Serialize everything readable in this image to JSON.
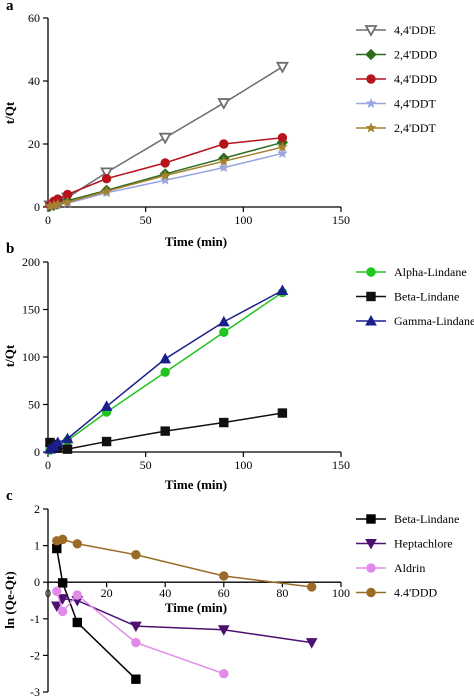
{
  "chart_data": [
    {
      "panel_label": "a",
      "type": "line",
      "xlabel": "Time (min)",
      "ylabel": "t/Qt",
      "xlim": [
        0,
        150
      ],
      "ylim": [
        0,
        60
      ],
      "xticks": [
        0,
        50,
        100,
        150
      ],
      "yticks": [
        0,
        20,
        40,
        60
      ],
      "legend_position": "right",
      "series": [
        {
          "name": "4,4'DDE",
          "color": "#6e6e6e",
          "marker": "triangle-down-open",
          "x": [
            1,
            3,
            5,
            10,
            30,
            60,
            90,
            120
          ],
          "y": [
            0.5,
            0.8,
            1.5,
            3,
            11,
            22,
            33,
            44.5
          ]
        },
        {
          "name": "2,4'DDD",
          "color": "#2f6b1f",
          "marker": "diamond",
          "x": [
            1,
            3,
            5,
            10,
            30,
            60,
            90,
            120
          ],
          "y": [
            0.3,
            0.6,
            1,
            2,
            5.3,
            10.5,
            15.5,
            20.5
          ]
        },
        {
          "name": "4,4'DDD",
          "color": "#b5141c",
          "marker": "circle",
          "x": [
            1,
            3,
            5,
            10,
            30,
            60,
            90,
            120
          ],
          "y": [
            0.6,
            1.8,
            2.5,
            4,
            9,
            14,
            20,
            22
          ]
        },
        {
          "name": "4,4'DDT",
          "color": "#9aa6e0",
          "marker": "star",
          "x": [
            1,
            3,
            5,
            10,
            30,
            60,
            90,
            120
          ],
          "y": [
            0.2,
            0.4,
            0.7,
            1.2,
            4.5,
            8.5,
            12.5,
            17
          ]
        },
        {
          "name": "2,4'DDT",
          "color": "#a5812e",
          "marker": "star",
          "x": [
            1,
            3,
            5,
            10,
            30,
            60,
            90,
            120
          ],
          "y": [
            0.3,
            0.5,
            0.9,
            1.5,
            5,
            10,
            14.5,
            19
          ]
        }
      ]
    },
    {
      "panel_label": "b",
      "type": "line",
      "xlabel": "Time (min)",
      "ylabel": "t/Qt",
      "xlim": [
        0,
        150
      ],
      "ylim": [
        0,
        200
      ],
      "xticks": [
        0,
        50,
        100,
        150
      ],
      "yticks": [
        0,
        50,
        100,
        150,
        200
      ],
      "legend_position": "right",
      "series": [
        {
          "name": "Alpha-Lindane",
          "color": "#21c421",
          "marker": "circle",
          "x": [
            1,
            3,
            5,
            10,
            30,
            60,
            90,
            120
          ],
          "y": [
            2,
            5,
            8,
            12,
            42,
            84,
            126,
            168
          ]
        },
        {
          "name": "Beta-Lindane",
          "color": "#111111",
          "marker": "square",
          "x": [
            1,
            3,
            5,
            10,
            30,
            60,
            90,
            120
          ],
          "y": [
            10,
            8,
            4,
            3,
            11,
            22,
            31,
            41
          ]
        },
        {
          "name": "Gamma-Lindane",
          "color": "#1a1f8c",
          "marker": "triangle-up",
          "x": [
            1,
            3,
            5,
            10,
            30,
            60,
            90,
            120
          ],
          "y": [
            3,
            6,
            10,
            14,
            48,
            98,
            137,
            170
          ]
        }
      ]
    },
    {
      "panel_label": "c",
      "type": "line",
      "xlabel": "Time (min)",
      "ylabel": "ln (Qe-Qt)",
      "xlim": [
        0,
        100
      ],
      "ylim": [
        -3,
        2
      ],
      "xticks": [
        0,
        20,
        40,
        60,
        80,
        100
      ],
      "yticks": [
        -3,
        -2,
        -1,
        0,
        1,
        2
      ],
      "legend_position": "right",
      "series": [
        {
          "name": "Beta-Lindane",
          "color": "#000000",
          "marker": "square",
          "x": [
            3,
            5,
            10,
            30
          ],
          "y": [
            0.92,
            -0.02,
            -1.1,
            -2.65
          ]
        },
        {
          "name": "Heptachlore",
          "color": "#4c1170",
          "marker": "triangle-down",
          "x": [
            3,
            5,
            10,
            30,
            60,
            90
          ],
          "y": [
            -0.65,
            -0.45,
            -0.5,
            -1.2,
            -1.3,
            -1.65
          ]
        },
        {
          "name": "Aldrin",
          "color": "#e18ae8",
          "marker": "circle",
          "x": [
            3,
            5,
            10,
            30,
            60
          ],
          "y": [
            -0.25,
            -0.8,
            -0.35,
            -1.65,
            -2.5
          ]
        },
        {
          "name": "4.4'DDD",
          "color": "#9a6b25",
          "marker": "circle",
          "x": [
            3,
            5,
            10,
            30,
            60,
            90
          ],
          "y": [
            1.13,
            1.17,
            1.05,
            0.75,
            0.17,
            -0.13
          ]
        }
      ]
    }
  ]
}
